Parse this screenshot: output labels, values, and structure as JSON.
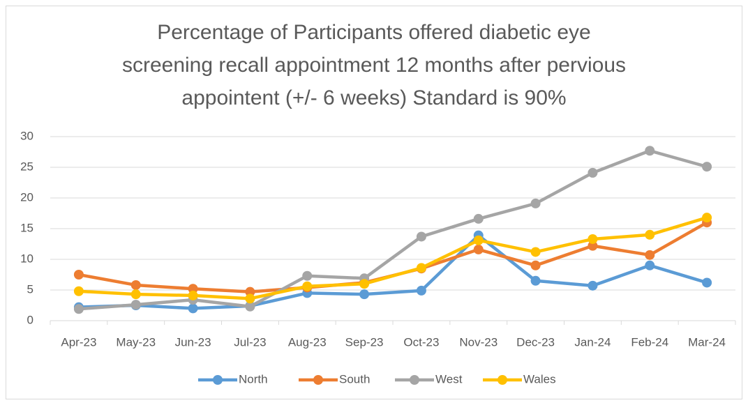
{
  "chart_data": {
    "type": "line",
    "title": [
      "Percentage of Participants offered diabetic eye",
      "screening recall appointment 12 months after pervious",
      "appointent (+/- 6 weeks) Standard is 90%"
    ],
    "categories": [
      "Apr-23",
      "May-23",
      "Jun-23",
      "Jul-23",
      "Aug-23",
      "Sep-23",
      "Oct-23",
      "Nov-23",
      "Dec-23",
      "Jan-24",
      "Feb-24",
      "Mar-24"
    ],
    "series": [
      {
        "name": "North",
        "color": "#5b9bd5",
        "values": [
          2.2,
          2.5,
          2.0,
          2.4,
          4.5,
          4.3,
          4.9,
          13.9,
          6.5,
          5.7,
          9.0,
          6.2
        ]
      },
      {
        "name": "South",
        "color": "#ed7d31",
        "values": [
          7.5,
          5.8,
          5.2,
          4.7,
          5.4,
          6.2,
          8.5,
          11.6,
          9.0,
          12.2,
          10.7,
          16.0
        ]
      },
      {
        "name": "West",
        "color": "#a5a5a5",
        "values": [
          1.9,
          2.6,
          3.4,
          2.3,
          7.3,
          6.9,
          13.7,
          16.6,
          19.1,
          24.1,
          27.7,
          25.1
        ]
      },
      {
        "name": "Wales",
        "color": "#ffc000",
        "values": [
          4.8,
          4.3,
          4.1,
          3.6,
          5.6,
          6.0,
          8.6,
          13.1,
          11.2,
          13.3,
          14.0,
          16.8
        ]
      }
    ],
    "ylim": [
      0,
      30
    ],
    "yticks": [
      0,
      5,
      10,
      15,
      20,
      25,
      30
    ],
    "grid": true,
    "legend": "bottom"
  }
}
